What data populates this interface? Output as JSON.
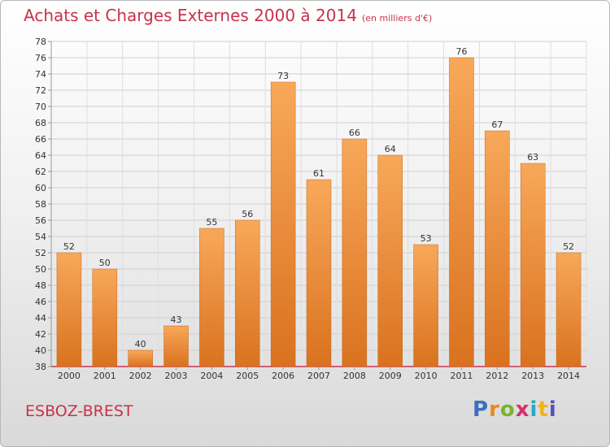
{
  "header": {
    "title": "Achats et Charges Externes 2000 à 2014",
    "subtitle": "(en milliers d'€)"
  },
  "footer": {
    "commune": "ESBOZ-BREST",
    "logo": "Proxiti"
  },
  "colors": {
    "title": "#c8324a",
    "bar_top": "#f8a85a",
    "bar_bottom": "#d9721f",
    "axis": "#cc3355"
  },
  "chart_data": {
    "type": "bar",
    "title": "Achats et Charges Externes 2000 à 2014",
    "subtitle": "(en milliers d'€)",
    "categories": [
      "2000",
      "2001",
      "2002",
      "2003",
      "2004",
      "2005",
      "2006",
      "2007",
      "2008",
      "2009",
      "2010",
      "2011",
      "2012",
      "2013",
      "2014"
    ],
    "values": [
      52,
      50,
      40,
      43,
      55,
      56,
      73,
      61,
      66,
      64,
      53,
      76,
      67,
      63,
      52
    ],
    "ylim": [
      38,
      78
    ],
    "yticks": [
      38,
      40,
      42,
      44,
      46,
      48,
      50,
      52,
      54,
      56,
      58,
      60,
      62,
      64,
      66,
      68,
      70,
      72,
      74,
      76,
      78
    ],
    "grid": true,
    "xlabel": "",
    "ylabel": ""
  }
}
